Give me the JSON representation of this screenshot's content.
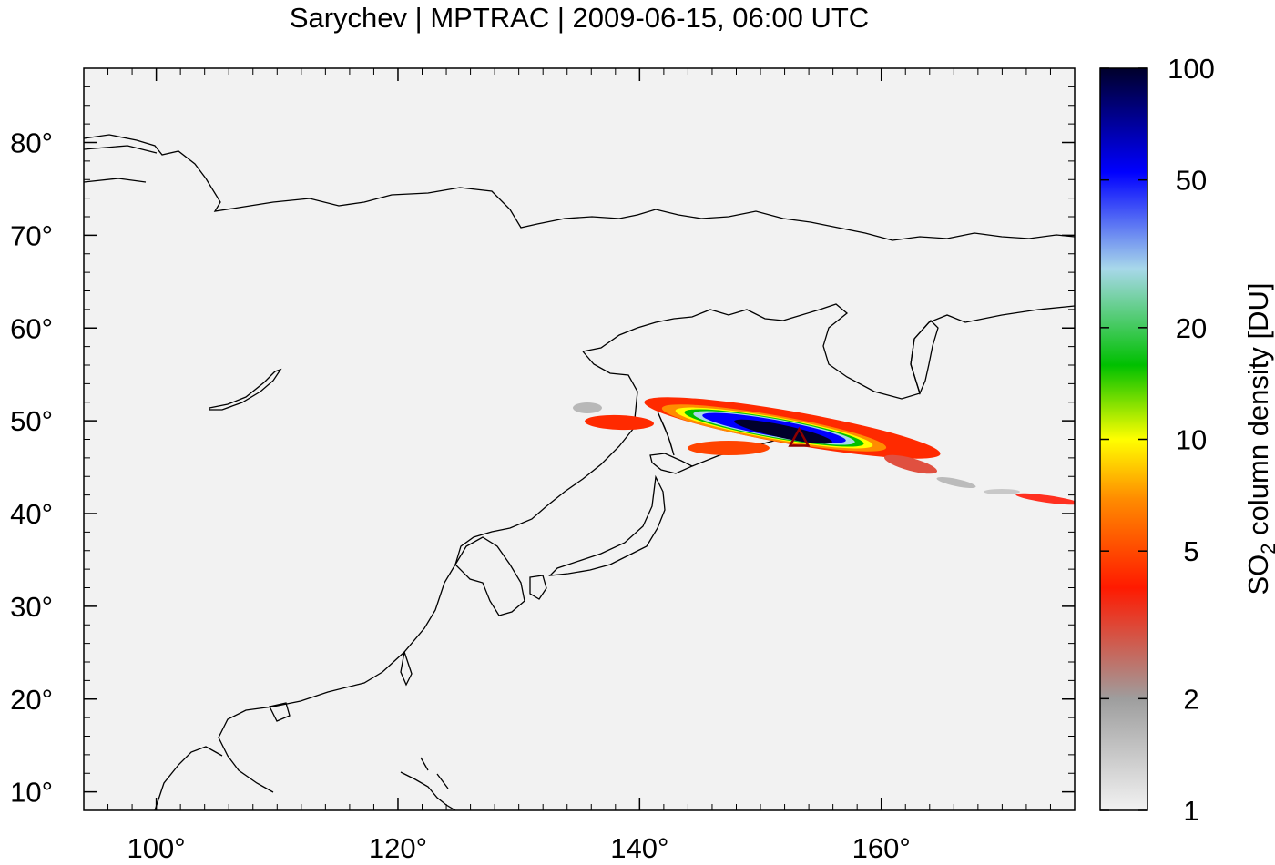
{
  "title": "Sarychev | MPTRAC | 2009-06-15, 06:00 UTC",
  "map": {
    "lon_range": [
      94,
      176
    ],
    "lat_range": [
      8,
      88
    ],
    "x_ticks": [
      {
        "value": 100,
        "label": "100°"
      },
      {
        "value": 120,
        "label": "120°"
      },
      {
        "value": 140,
        "label": "140°"
      },
      {
        "value": 160,
        "label": "160°"
      }
    ],
    "y_ticks": [
      {
        "value": 10,
        "label": "10°"
      },
      {
        "value": 20,
        "label": "20°"
      },
      {
        "value": 30,
        "label": "30°"
      },
      {
        "value": 40,
        "label": "40°"
      },
      {
        "value": 50,
        "label": "50°"
      },
      {
        "value": 60,
        "label": "60°"
      },
      {
        "value": 70,
        "label": "70°"
      },
      {
        "value": 80,
        "label": "80°"
      }
    ],
    "background_color": "#f2f2f2",
    "coastline_color": "#000000",
    "volcano_marker": {
      "name": "Sarychev",
      "lon": 153.2,
      "lat": 48.1,
      "color": "#8b0000"
    }
  },
  "colorbar": {
    "scale": "log",
    "range": [
      1,
      100
    ],
    "label_main": "SO",
    "label_sub": "2",
    "label_rest": " column density [DU]",
    "ticks": [
      {
        "value": 1,
        "label": "1"
      },
      {
        "value": 2,
        "label": "2"
      },
      {
        "value": 5,
        "label": "5"
      },
      {
        "value": 10,
        "label": "10"
      },
      {
        "value": 20,
        "label": "20"
      },
      {
        "value": 50,
        "label": "50"
      },
      {
        "value": 100,
        "label": "100"
      }
    ],
    "colors": [
      "#f2f2f2",
      "#9e9e9e",
      "#ff1a00",
      "#ff8c00",
      "#ffff00",
      "#00c000",
      "#a8d8ea",
      "#0000ff",
      "#00002b"
    ]
  }
}
